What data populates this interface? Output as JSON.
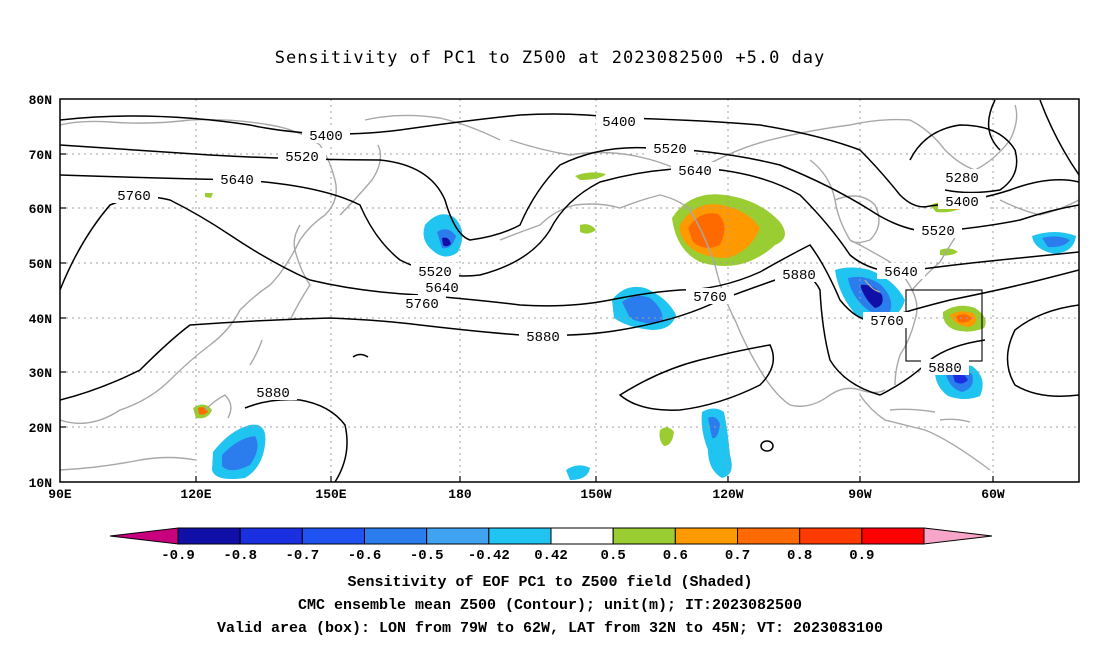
{
  "title": "Sensitivity of PC1 to Z500 at 2023082500 +5.0 day",
  "lat_labels": [
    "80N",
    "70N",
    "60N",
    "50N",
    "40N",
    "30N",
    "20N",
    "10N"
  ],
  "lon_labels": [
    "90E",
    "120E",
    "150E",
    "180",
    "150W",
    "120W",
    "90W",
    "60W"
  ],
  "contour_labels": {
    "c5400a": "5400",
    "c5400b": "5400",
    "c5400c": "5400",
    "c5520a": "5520",
    "c5520b": "5520",
    "c5520c": "5520",
    "c5520d": "5520",
    "c5640a": "5640",
    "c5640b": "5640",
    "c5640c": "5640",
    "c5640d": "5640",
    "c5760a": "5760",
    "c5760b": "5760",
    "c5760c": "5760",
    "c5760d": "5760",
    "c5880a": "5880",
    "c5880b": "5880",
    "c5880c": "5880",
    "c5880d": "5880",
    "c5280": "5280"
  },
  "colorbar": {
    "labels": [
      "-0.9",
      "-0.8",
      "-0.7",
      "-0.6",
      "-0.5",
      "-0.42",
      "0.42",
      "0.5",
      "0.6",
      "0.7",
      "0.8",
      "0.9"
    ],
    "colors": [
      "#c8007d",
      "#1010a8",
      "#1a2fe0",
      "#1f52f0",
      "#2b7dee",
      "#3fa3f2",
      "#20c4f0",
      "#ffffff",
      "#9acd32",
      "#ff9900",
      "#ff6a00",
      "#ff3a00",
      "#ff0000",
      "#f7a6c9"
    ]
  },
  "captions": {
    "line1": "Sensitivity of EOF PC1 to Z500 field (Shaded)",
    "line2": "CMC ensemble mean Z500 (Contour); unit(m); IT:2023082500",
    "line3": "Valid area (box): LON from 79W to 62W, LAT from 32N to 45N; VT: 2023083100"
  }
}
